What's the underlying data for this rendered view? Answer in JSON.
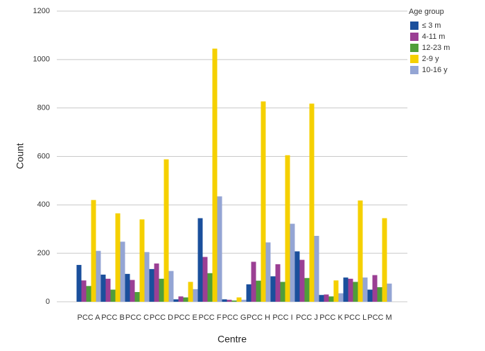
{
  "chart_data": {
    "type": "bar",
    "x_label": "Centre",
    "y_label": "Count",
    "legend_title": "Age group",
    "legend_position": "right",
    "categories": [
      "PCC A",
      "PCC B",
      "PCC C",
      "PCC D",
      "PCC E",
      "PCC F",
      "PCC G",
      "PCC H",
      "PCC I",
      "PCC J",
      "PCC K",
      "PCC L",
      "PCC M"
    ],
    "series": [
      {
        "name": "≤ 3 m",
        "color": "#1a4f9c",
        "values": [
          152,
          112,
          115,
          135,
          10,
          345,
          10,
          72,
          105,
          208,
          28,
          100,
          50
        ]
      },
      {
        "name": "4-11 m",
        "color": "#9b3f94",
        "values": [
          88,
          95,
          90,
          158,
          22,
          185,
          8,
          165,
          155,
          173,
          30,
          95,
          110
        ]
      },
      {
        "name": "12-23 m",
        "color": "#4f9e3a",
        "values": [
          65,
          50,
          40,
          95,
          18,
          118,
          5,
          87,
          82,
          98,
          22,
          82,
          60
        ]
      },
      {
        "name": "2-9 y",
        "color": "#f5d000",
        "values": [
          420,
          365,
          340,
          588,
          82,
          1045,
          18,
          827,
          605,
          818,
          88,
          418,
          345
        ]
      },
      {
        "name": "10-16 y",
        "color": "#94a5d4",
        "values": [
          210,
          248,
          205,
          127,
          52,
          435,
          8,
          245,
          322,
          272,
          35,
          100,
          75
        ]
      }
    ],
    "ylim": [
      0,
      1200
    ],
    "yticks": [
      0,
      200,
      400,
      600,
      800,
      1000,
      1200
    ],
    "grid": true
  }
}
